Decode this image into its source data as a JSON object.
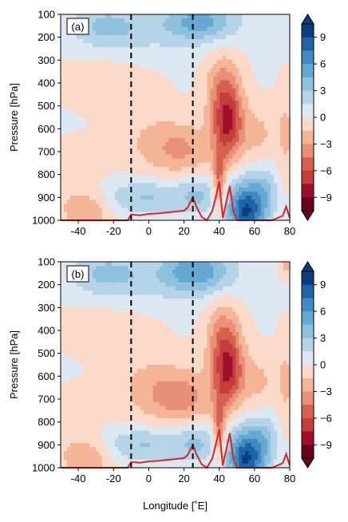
{
  "chart_data": {
    "type": "heatmap",
    "shared": {
      "xlabel": "Longitude [˚E]",
      "ylabel": "Pressure [hPa]",
      "xlim": [
        -50,
        80
      ],
      "ylim": [
        1000,
        100
      ],
      "x_ticks": [
        -40,
        -20,
        0,
        20,
        40,
        60,
        80
      ],
      "y_ticks": [
        100,
        200,
        300,
        400,
        500,
        600,
        700,
        800,
        900,
        1000
      ],
      "colorbar_ticks": [
        9,
        6,
        3,
        0,
        -3,
        -6,
        -9
      ],
      "colorbar_range": [
        -10.5,
        10.5
      ],
      "colorbar_step": 1.5,
      "colorbar_extend": "both",
      "colormap": "RdBu (red = negative, blue = positive)",
      "dashed_lines_x": [
        -10,
        25
      ]
    },
    "panels": [
      {
        "label": "(a)",
        "contour_features": [
          {
            "x": 45,
            "p": 580,
            "sx": 6,
            "sp": 110,
            "v": -7
          },
          {
            "x": 42,
            "p": 420,
            "sx": 7,
            "sp": 110,
            "v": -3.5
          },
          {
            "x": 40,
            "p": 830,
            "sx": 2.5,
            "sp": 90,
            "v": -5
          },
          {
            "x": 20,
            "p": 690,
            "sx": 13,
            "sp": 80,
            "v": -3
          },
          {
            "x": 0,
            "p": 650,
            "sx": 14,
            "sp": 110,
            "v": -1.5
          },
          {
            "x": 62,
            "p": 620,
            "sx": 8,
            "sp": 90,
            "v": -2
          },
          {
            "x": 78,
            "p": 620,
            "sx": 4,
            "sp": 150,
            "v": -1.8
          },
          {
            "x": -35,
            "p": 960,
            "sx": 10,
            "sp": 60,
            "v": -3
          },
          {
            "x": -42,
            "p": 820,
            "sx": 12,
            "sp": 110,
            "v": -1
          },
          {
            "x": -25,
            "p": 380,
            "sx": 20,
            "sp": 90,
            "v": -0.9
          },
          {
            "x": 55,
            "p": 960,
            "sx": 7,
            "sp": 90,
            "v": 9
          },
          {
            "x": 66,
            "p": 880,
            "sx": 5,
            "sp": 80,
            "v": 3
          },
          {
            "x": -2,
            "p": 900,
            "sx": 18,
            "sp": 55,
            "v": 3
          },
          {
            "x": 28,
            "p": 890,
            "sx": 8,
            "sp": 60,
            "v": 2.5
          },
          {
            "x": 30,
            "p": 130,
            "sx": 14,
            "sp": 60,
            "v": 4.5
          },
          {
            "x": -25,
            "p": 150,
            "sx": 14,
            "sp": 70,
            "v": 2.5
          },
          {
            "x": 0,
            "p": 170,
            "sx": 25,
            "sp": 80,
            "v": 1.5
          }
        ],
        "orography_x": [
          -50,
          -12,
          -10,
          -5,
          0,
          5,
          10,
          15,
          20,
          22,
          25,
          27,
          30,
          33,
          36,
          38,
          40,
          42,
          44,
          46,
          48,
          50,
          60,
          70,
          76,
          78,
          80
        ],
        "orography_p": [
          1000,
          1000,
          975,
          978,
          972,
          970,
          966,
          962,
          958,
          945,
          900,
          940,
          985,
          1000,
          960,
          900,
          830,
          990,
          920,
          850,
          960,
          1000,
          1000,
          1000,
          980,
          940,
          990
        ]
      },
      {
        "label": "(b)",
        "contour_features": [
          {
            "x": 45,
            "p": 580,
            "sx": 6,
            "sp": 110,
            "v": -7
          },
          {
            "x": 42,
            "p": 420,
            "sx": 7,
            "sp": 110,
            "v": -3.5
          },
          {
            "x": 40,
            "p": 830,
            "sx": 2.5,
            "sp": 90,
            "v": -5
          },
          {
            "x": 20,
            "p": 690,
            "sx": 13,
            "sp": 80,
            "v": -3.5
          },
          {
            "x": 0,
            "p": 650,
            "sx": 14,
            "sp": 110,
            "v": -2
          },
          {
            "x": 62,
            "p": 620,
            "sx": 8,
            "sp": 90,
            "v": -2
          },
          {
            "x": 78,
            "p": 620,
            "sx": 4,
            "sp": 150,
            "v": -1.8
          },
          {
            "x": -35,
            "p": 960,
            "sx": 10,
            "sp": 60,
            "v": -3
          },
          {
            "x": -42,
            "p": 820,
            "sx": 12,
            "sp": 110,
            "v": -1
          },
          {
            "x": -25,
            "p": 380,
            "sx": 20,
            "sp": 90,
            "v": -0.9
          },
          {
            "x": 55,
            "p": 960,
            "sx": 7,
            "sp": 90,
            "v": 9
          },
          {
            "x": 66,
            "p": 880,
            "sx": 5,
            "sp": 80,
            "v": 3
          },
          {
            "x": -2,
            "p": 900,
            "sx": 18,
            "sp": 55,
            "v": 3
          },
          {
            "x": 28,
            "p": 890,
            "sx": 8,
            "sp": 60,
            "v": 2.5
          },
          {
            "x": 28,
            "p": 140,
            "sx": 14,
            "sp": 70,
            "v": 5
          },
          {
            "x": 78,
            "p": 110,
            "sx": 3,
            "sp": 40,
            "v": -2
          },
          {
            "x": -25,
            "p": 150,
            "sx": 14,
            "sp": 70,
            "v": 2.5
          },
          {
            "x": 0,
            "p": 170,
            "sx": 25,
            "sp": 80,
            "v": 1.5
          }
        ],
        "orography_x": [
          -50,
          -12,
          -10,
          -5,
          0,
          5,
          10,
          15,
          20,
          22,
          25,
          27,
          30,
          33,
          36,
          38,
          40,
          42,
          44,
          46,
          48,
          50,
          60,
          70,
          76,
          78,
          80
        ],
        "orography_p": [
          1000,
          1000,
          975,
          978,
          972,
          970,
          966,
          962,
          958,
          945,
          900,
          940,
          985,
          1000,
          960,
          900,
          830,
          990,
          920,
          850,
          960,
          1000,
          1000,
          1000,
          980,
          940,
          990
        ]
      }
    ]
  },
  "colors": {
    "orography_line": "#d62728",
    "dashed_line": "#000000"
  }
}
